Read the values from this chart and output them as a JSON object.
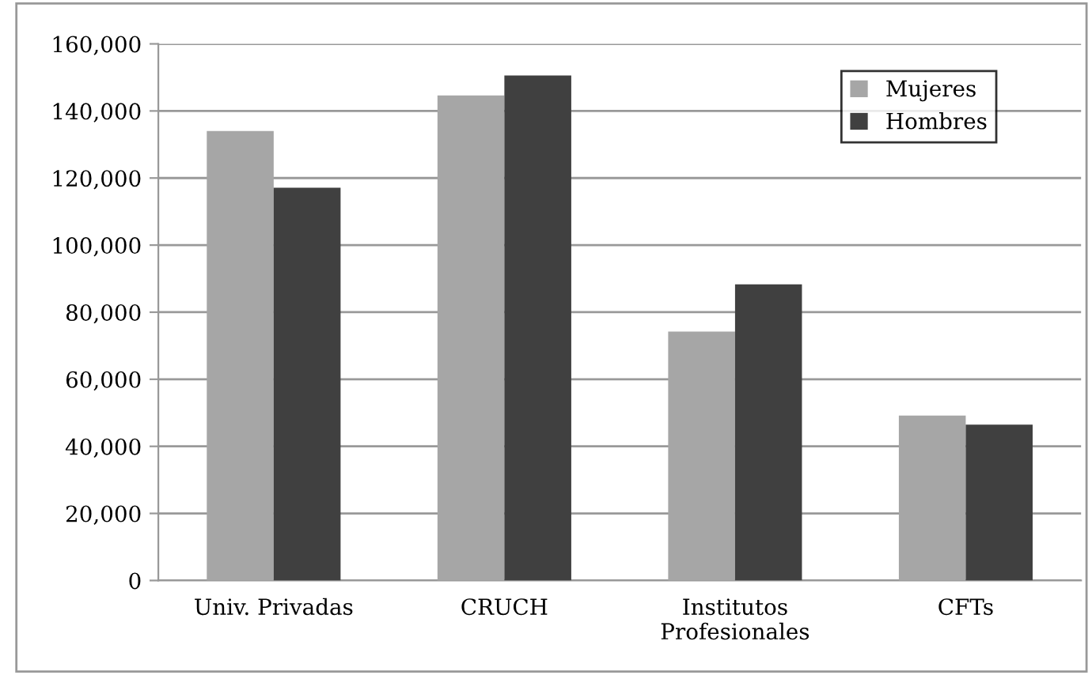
{
  "chart_data": {
    "type": "bar",
    "categories": [
      "Univ. Privadas",
      "CRUCH",
      "Institutos\nProfesionales",
      "CFTs"
    ],
    "series": [
      {
        "name": "Mujeres",
        "color": "#a6a6a6",
        "values": [
          134000,
          144600,
          74200,
          49200
        ]
      },
      {
        "name": "Hombres",
        "color": "#404040",
        "values": [
          117100,
          150600,
          88300,
          46500
        ]
      }
    ],
    "ylim": [
      0,
      160000
    ],
    "yticks": [
      {
        "value": 0,
        "label": "0"
      },
      {
        "value": 20000,
        "label": "20,000"
      },
      {
        "value": 40000,
        "label": "40,000"
      },
      {
        "value": 60000,
        "label": "60,000"
      },
      {
        "value": 80000,
        "label": "80,000"
      },
      {
        "value": 100000,
        "label": "100,000"
      },
      {
        "value": 120000,
        "label": "120,000"
      },
      {
        "value": 140000,
        "label": "140,000"
      },
      {
        "value": 160000,
        "label": "160,000"
      }
    ],
    "grid": "y",
    "legend": "top right"
  }
}
